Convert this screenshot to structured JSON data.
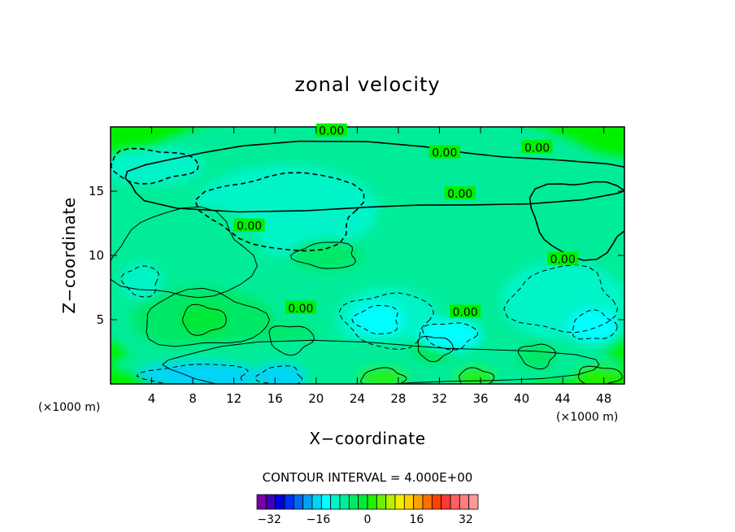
{
  "chart_data": {
    "type": "contour",
    "title": "zonal velocity",
    "xlabel": "X−coordinate",
    "ylabel": "Z−coordinate",
    "x_unit_left": "(×1000 m)",
    "x_unit_right": "(×1000 m)",
    "xlim": [
      0,
      50
    ],
    "ylim": [
      0,
      20
    ],
    "x_ticks": [
      4,
      8,
      12,
      16,
      20,
      24,
      28,
      32,
      36,
      40,
      44,
      48
    ],
    "y_ticks": [
      5,
      10,
      15
    ],
    "contour_interval_text": "CONTOUR INTERVAL = 4.000E+00",
    "contour_labels": [
      {
        "text": "0.00",
        "x": 21.5,
        "y": 19.7
      },
      {
        "text": "0.00",
        "x": 32.5,
        "y": 18.0
      },
      {
        "text": "0.00",
        "x": 41.5,
        "y": 18.4
      },
      {
        "text": "0.00",
        "x": 34.0,
        "y": 14.8
      },
      {
        "text": "0.00",
        "x": 13.5,
        "y": 12.3
      },
      {
        "text": "0.00",
        "x": 44.0,
        "y": 9.7
      },
      {
        "text": "0.00",
        "x": 18.5,
        "y": 5.9
      },
      {
        "text": "0.00",
        "x": 34.5,
        "y": 5.6
      }
    ],
    "colorbar": {
      "levels": [
        -36,
        36
      ],
      "step": 4,
      "tick_values": [
        -32,
        -16,
        0,
        16,
        32
      ],
      "tick_labels": [
        "−32",
        "−16",
        "0",
        "16",
        "32"
      ],
      "colors": [
        "#7a00a8",
        "#3a00b8",
        "#0000d8",
        "#0030f0",
        "#0068f4",
        "#00a0f4",
        "#00d4f8",
        "#00ffff",
        "#00f4c8",
        "#00ec98",
        "#00e868",
        "#00e838",
        "#20f000",
        "#70f000",
        "#b8f000",
        "#f0f000",
        "#ffd000",
        "#ffa000",
        "#ff7000",
        "#ff4000",
        "#ff3838",
        "#ff6060",
        "#ff8080",
        "#ff9898"
      ]
    },
    "field_color_legend": {
      "near_zero": "#00ff00",
      "weak_positive": "#40f000",
      "weak_negative": "#00f870"
    },
    "regions": [
      {
        "x": 25,
        "y": 10,
        "rx": 30,
        "ry": 12,
        "value": 0
      },
      {
        "x": 25,
        "y": 16,
        "rx": 30,
        "ry": 3,
        "value": 1
      },
      {
        "x": 4,
        "y": 17,
        "rx": 5,
        "ry": 1.5,
        "value": -1
      },
      {
        "x": 46,
        "y": 13,
        "rx": 6,
        "ry": 3.5,
        "value": 0.5
      },
      {
        "x": 17,
        "y": 13.5,
        "rx": 9,
        "ry": 3.5,
        "value": -0.4
      },
      {
        "x": 21,
        "y": 10,
        "rx": 3.5,
        "ry": 1.2,
        "value": 5
      },
      {
        "x": 7,
        "y": 10,
        "rx": 8,
        "ry": 4,
        "value": 2
      },
      {
        "x": 9,
        "y": 5,
        "rx": 7,
        "ry": 2.5,
        "value": 6
      },
      {
        "x": 9,
        "y": 5,
        "rx": 2.5,
        "ry": 1.3,
        "value": 10
      },
      {
        "x": 17.5,
        "y": 3.5,
        "rx": 2.5,
        "ry": 1.3,
        "value": 7
      },
      {
        "x": 27,
        "y": 5,
        "rx": 5,
        "ry": 2.5,
        "value": -4
      },
      {
        "x": 26,
        "y": 5,
        "rx": 2.5,
        "ry": 1.3,
        "value": -8
      },
      {
        "x": 44,
        "y": 6.5,
        "rx": 6,
        "ry": 3,
        "value": -4
      },
      {
        "x": 47,
        "y": 4.5,
        "rx": 2.5,
        "ry": 1.3,
        "value": -8
      },
      {
        "x": 25,
        "y": 1.5,
        "rx": 25,
        "ry": 2,
        "value": 3
      },
      {
        "x": 31.5,
        "y": 2.8,
        "rx": 2,
        "ry": 1.1,
        "value": 9
      },
      {
        "x": 41.5,
        "y": 2.2,
        "rx": 2,
        "ry": 1.1,
        "value": 5
      },
      {
        "x": 8.5,
        "y": 0.6,
        "rx": 6,
        "ry": 1.1,
        "value": -12
      },
      {
        "x": 16.5,
        "y": 0.6,
        "rx": 2.5,
        "ry": 0.9,
        "value": -10
      },
      {
        "x": 26.5,
        "y": 0.5,
        "rx": 2.5,
        "ry": 0.8,
        "value": 14
      },
      {
        "x": 35.5,
        "y": 0.5,
        "rx": 2,
        "ry": 0.8,
        "value": 13
      },
      {
        "x": 47.5,
        "y": 0.6,
        "rx": 2.5,
        "ry": 0.9,
        "value": 14
      },
      {
        "x": 33,
        "y": 3.8,
        "rx": 3,
        "ry": 1.2,
        "value": -6
      },
      {
        "x": 3,
        "y": 8,
        "rx": 2,
        "ry": 1.4,
        "value": -2
      }
    ]
  }
}
